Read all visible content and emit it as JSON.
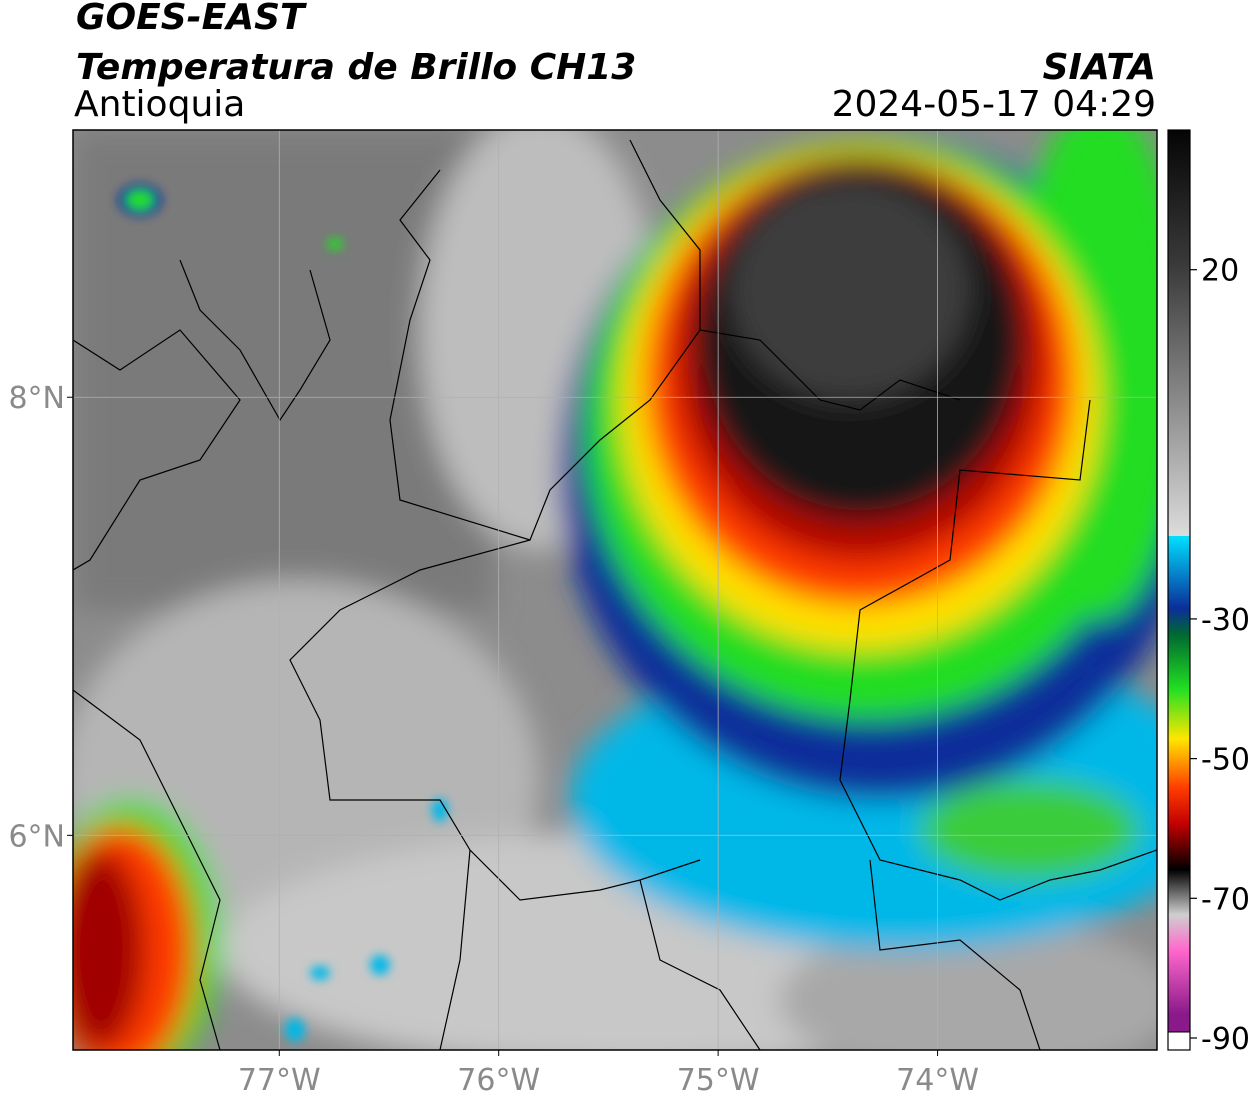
{
  "header": {
    "title": "GOES-EAST",
    "subtitle": "Temperatura de Brillo CH13",
    "region": "Antioquia",
    "source": "SIATA",
    "datetime": "2024-05-17 04:29"
  },
  "map": {
    "xlim": [
      -77.94,
      -73
    ],
    "ylim": [
      5.02,
      9.22
    ],
    "xticks": [
      {
        "value": -77,
        "label": "77°W"
      },
      {
        "value": -76,
        "label": "76°W"
      },
      {
        "value": -75,
        "label": "75°W"
      },
      {
        "value": -74,
        "label": "74°W"
      }
    ],
    "yticks": [
      {
        "value": 8,
        "label": "8°N"
      },
      {
        "value": 6,
        "label": "6°N"
      }
    ],
    "grid": true
  },
  "colorbar": {
    "lim": [
      -90,
      40
    ],
    "ticks": [
      20,
      -30,
      -50,
      -70,
      -90
    ]
  }
}
